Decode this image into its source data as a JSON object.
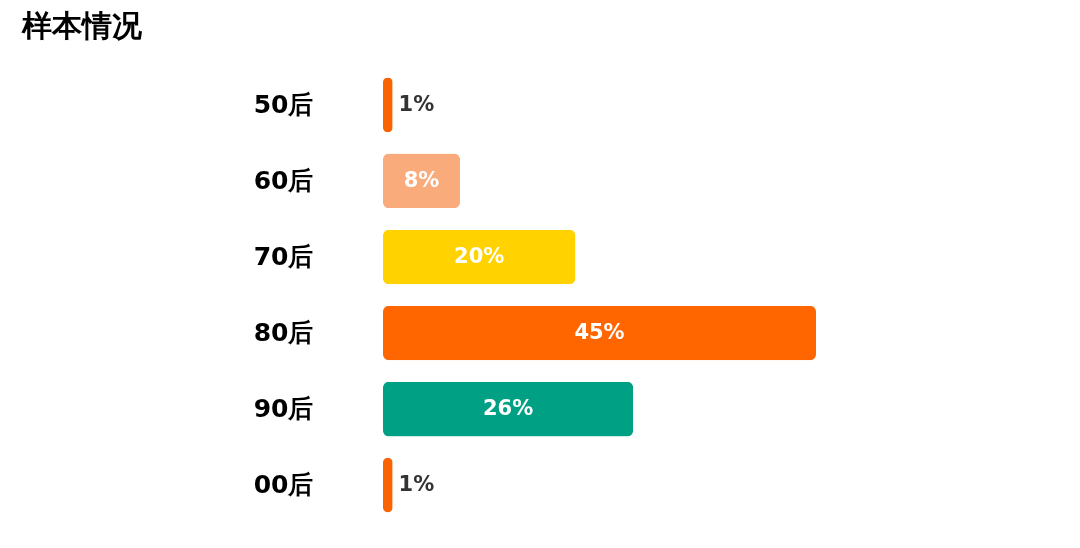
{
  "chart_data": {
    "type": "bar",
    "orientation": "horizontal",
    "title": "样本情况",
    "categories": [
      "50后",
      "60后",
      "70后",
      "80后",
      "90后",
      "00后"
    ],
    "values": [
      1,
      8,
      20,
      45,
      26,
      1
    ],
    "colors": [
      "#f96400",
      "#f9ab7b",
      "#ffd200",
      "#ff6600",
      "#00a085",
      "#f96400"
    ],
    "value_labels": [
      "1%",
      "8%",
      "20%",
      "45%",
      "26%",
      "1%"
    ]
  }
}
